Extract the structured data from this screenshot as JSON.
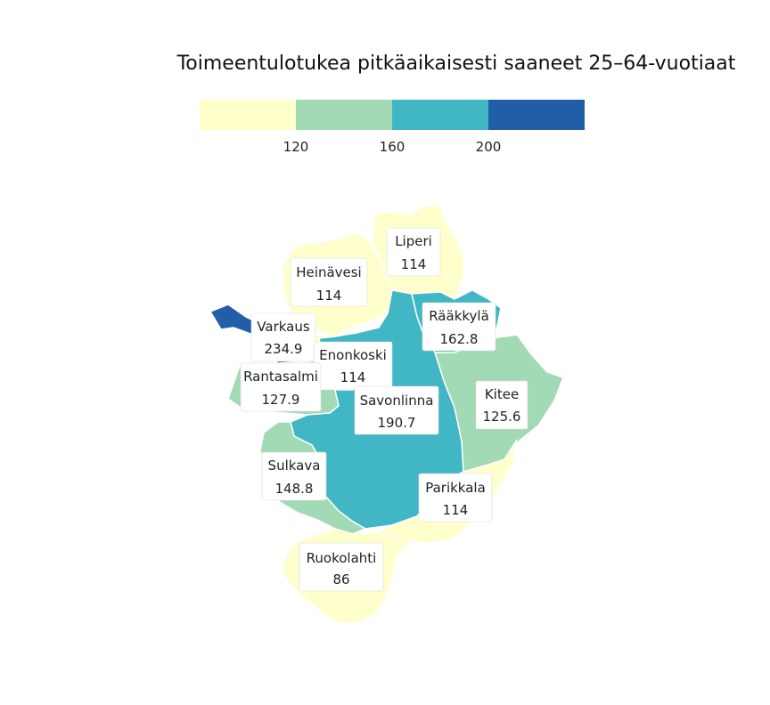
{
  "title": "Toimeentulotukea pitkäaikaisesti saaneet 25–64-vuotiaat",
  "legend": {
    "colors": [
      "#ffffcc",
      "#a1dab4",
      "#41b6c4",
      "#225ea8"
    ],
    "thresholds": [
      "120",
      "160",
      "200"
    ]
  },
  "regions": [
    {
      "name": "Liperi",
      "value": "114",
      "class": 0
    },
    {
      "name": "Heinävesi",
      "value": "114",
      "class": 0
    },
    {
      "name": "Varkaus",
      "value": "234.9",
      "class": 3
    },
    {
      "name": "Rääkkylä",
      "value": "162.8",
      "class": 2
    },
    {
      "name": "Enonkoski",
      "value": "114",
      "class": 0
    },
    {
      "name": "Rantasalmi",
      "value": "127.9",
      "class": 1
    },
    {
      "name": "Savonlinna",
      "value": "190.7",
      "class": 2
    },
    {
      "name": "Kitee",
      "value": "125.6",
      "class": 1
    },
    {
      "name": "Sulkava",
      "value": "148.8",
      "class": 1
    },
    {
      "name": "Parikkala",
      "value": "114",
      "class": 0
    },
    {
      "name": "Ruokolahti",
      "value": "86",
      "class": 0
    }
  ]
}
